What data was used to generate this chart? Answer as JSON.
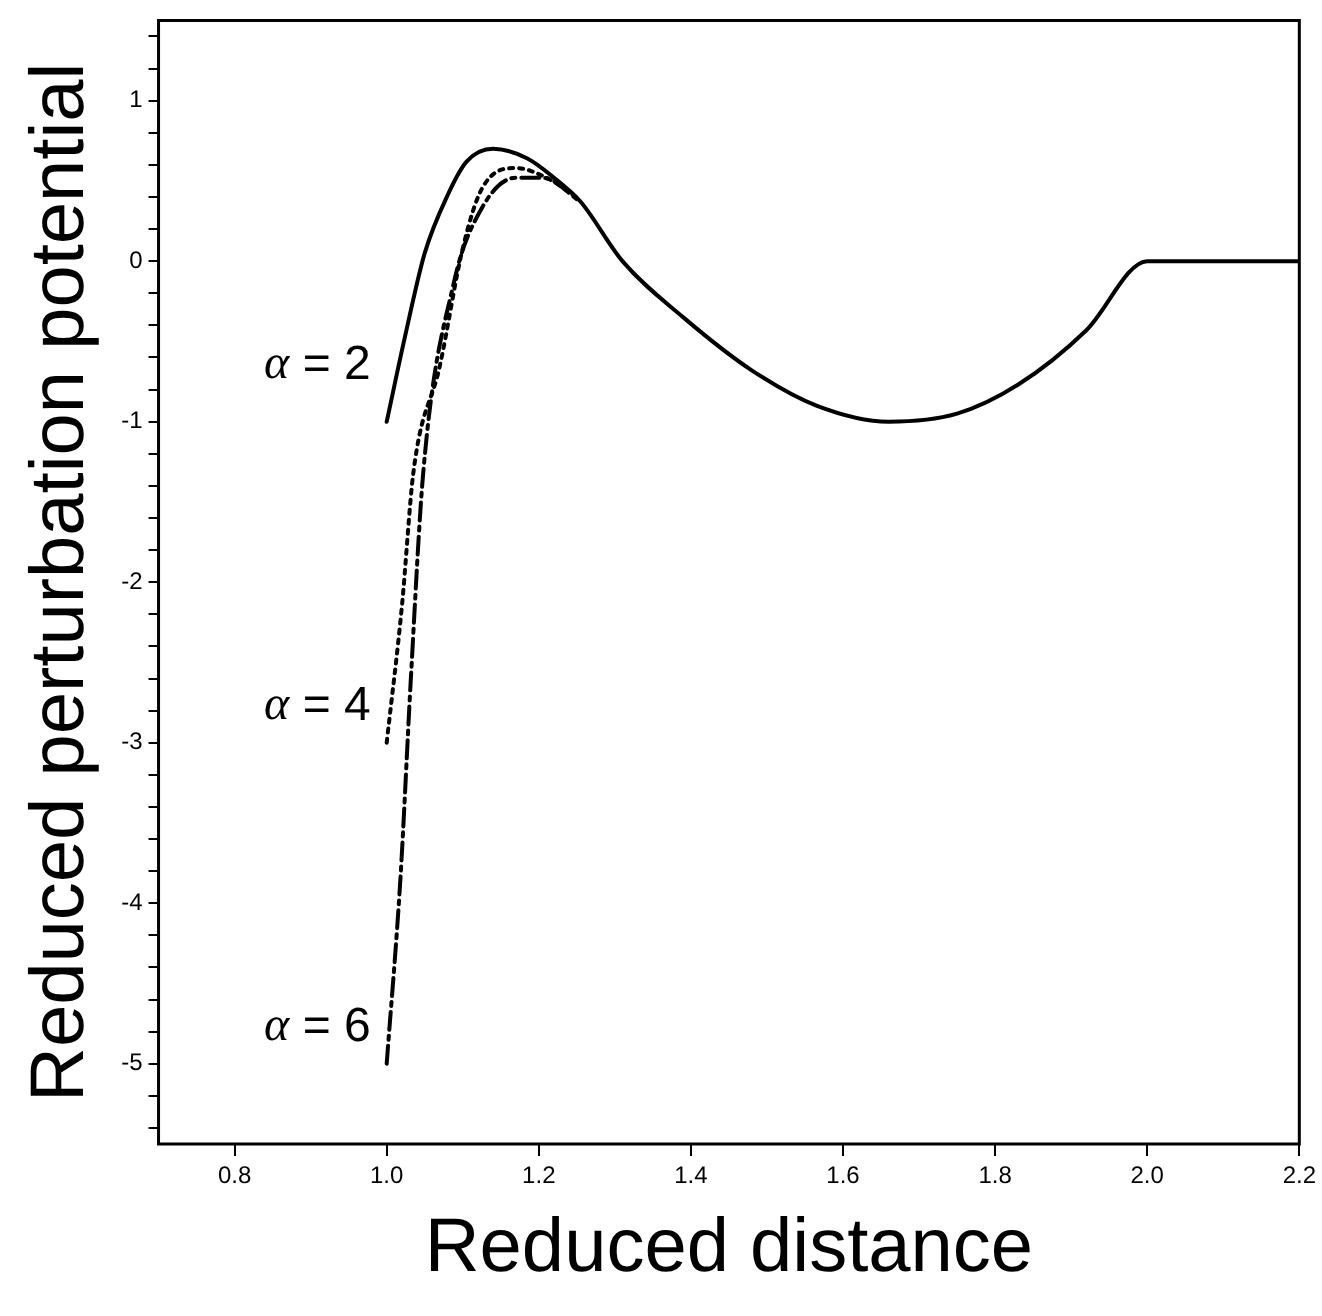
{
  "chart_data": {
    "type": "line",
    "xlabel": "Reduced distance",
    "ylabel": "Reduced perturbation potential",
    "xlim": [
      0.7,
      2.2
    ],
    "ylim": [
      -5.5,
      1.5
    ],
    "xticks": [
      0.8,
      {
        "value": 1,
        "label": "1.0"
      },
      1.2,
      1.4,
      1.6,
      1.8,
      {
        "value": 2,
        "label": "2.0"
      },
      2.2
    ],
    "yticks": [
      -5,
      -4,
      -3,
      -2,
      -1,
      0,
      1,
      {
        "value": -5.4,
        "label": null
      },
      {
        "value": -5.2,
        "label": null
      },
      {
        "value": -4.8,
        "label": null
      },
      {
        "value": -4.6,
        "label": null
      },
      {
        "value": -4.4,
        "label": null
      },
      {
        "value": -4.2,
        "label": null
      },
      {
        "value": -3.8,
        "label": null
      },
      {
        "value": -3.6,
        "label": null
      },
      {
        "value": -3.4,
        "label": null
      },
      {
        "value": -3.2,
        "label": null
      },
      {
        "value": -2.8,
        "label": null
      },
      {
        "value": -2.6,
        "label": null
      },
      {
        "value": -2.4,
        "label": null
      },
      {
        "value": -2.2,
        "label": null
      },
      {
        "value": -1.8,
        "label": null
      },
      {
        "value": -1.6,
        "label": null
      },
      {
        "value": -1.4,
        "label": null
      },
      {
        "value": -1.2,
        "label": null
      },
      {
        "value": -0.8,
        "label": null
      },
      {
        "value": -0.6,
        "label": null
      },
      {
        "value": -0.4,
        "label": null
      },
      {
        "value": -0.2,
        "label": null
      },
      {
        "value": 0.2,
        "label": null
      },
      {
        "value": 0.4,
        "label": null
      },
      {
        "value": 0.6,
        "label": null
      },
      {
        "value": 0.8,
        "label": null
      },
      {
        "value": 1.2,
        "label": null
      },
      {
        "value": 1.4,
        "label": null
      }
    ],
    "grid": false,
    "legend": false,
    "marker": "none",
    "series": [
      {
        "name": "α = 2",
        "color": "#000000",
        "line_style": "solid",
        "x": [
          1.0,
          1.025,
          1.05,
          1.08,
          1.105,
          1.14,
          1.185,
          1.22,
          1.255,
          1.31,
          1.39,
          1.48,
          1.565,
          1.66,
          1.75,
          1.83,
          1.92,
          2.0,
          2.2
        ],
        "values": [
          -1.0,
          -0.45,
          0.05,
          0.41,
          0.62,
          0.7,
          0.64,
          0.52,
          0.37,
          0.0,
          -0.35,
          -0.68,
          -0.9,
          -1.0,
          -0.95,
          -0.77,
          -0.43,
          0,
          0
        ]
      },
      {
        "name": "α = 4",
        "color": "#000000",
        "line_style": "dotted",
        "x": [
          1.0,
          1.02,
          1.035,
          1.07,
          1.1,
          1.125,
          1.17,
          1.21,
          1.255
        ],
        "values": [
          -3.0,
          -2.15,
          -1.32,
          -0.65,
          0.08,
          0.45,
          0.58,
          0.52,
          0.38
        ]
      },
      {
        "name": "α = 6",
        "color": "#000000",
        "line_style": "dashed",
        "x": [
          1.0,
          1.018,
          1.032,
          1.048,
          1.088,
          1.125,
          1.17,
          1.205,
          1.255
        ],
        "values": [
          -5.0,
          -3.85,
          -2.58,
          -1.32,
          -0.14,
          0.33,
          0.52,
          0.52,
          0.37
        ]
      }
    ]
  }
}
